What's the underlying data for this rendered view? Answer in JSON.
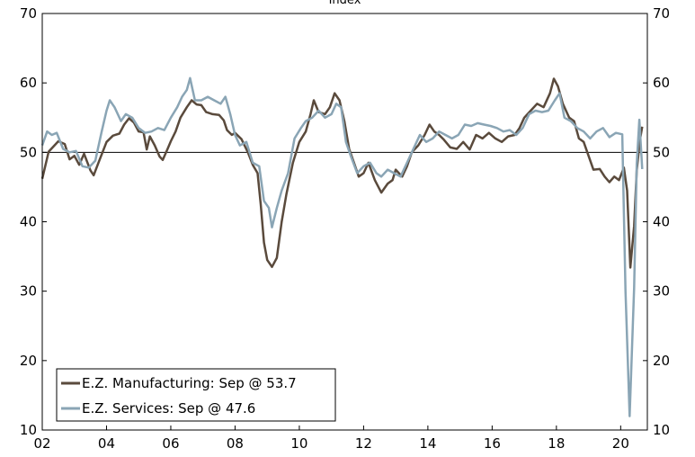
{
  "chart_data": {
    "type": "line",
    "title": "Index",
    "ylim": [
      10,
      70
    ],
    "yticks": [
      10,
      20,
      30,
      40,
      50,
      60,
      70
    ],
    "xlim": [
      2002,
      2020.83
    ],
    "xticks": [
      {
        "value": 2002,
        "label": "02"
      },
      {
        "value": 2004,
        "label": "04"
      },
      {
        "value": 2006,
        "label": "06"
      },
      {
        "value": 2008,
        "label": "08"
      },
      {
        "value": 2010,
        "label": "10"
      },
      {
        "value": 2012,
        "label": "12"
      },
      {
        "value": 2014,
        "label": "14"
      },
      {
        "value": 2016,
        "label": "16"
      },
      {
        "value": 2018,
        "label": "18"
      },
      {
        "value": 2020,
        "label": "20"
      }
    ],
    "reference_line": 50,
    "legend_position": "bottom-left",
    "series": [
      {
        "name": "E.Z. Manufacturing: Sep @ 53.7",
        "color": "#5a4a3c",
        "points": [
          [
            2002.0,
            46.2
          ],
          [
            2002.2,
            50.1
          ],
          [
            2002.5,
            51.6
          ],
          [
            2002.7,
            51.2
          ],
          [
            2002.85,
            49.0
          ],
          [
            2003.0,
            49.5
          ],
          [
            2003.15,
            48.2
          ],
          [
            2003.3,
            49.8
          ],
          [
            2003.5,
            47.4
          ],
          [
            2003.6,
            46.7
          ],
          [
            2003.75,
            48.5
          ],
          [
            2004.0,
            51.5
          ],
          [
            2004.2,
            52.4
          ],
          [
            2004.4,
            52.7
          ],
          [
            2004.55,
            54.0
          ],
          [
            2004.7,
            54.9
          ],
          [
            2004.85,
            54.3
          ],
          [
            2005.0,
            53.0
          ],
          [
            2005.15,
            52.9
          ],
          [
            2005.25,
            50.4
          ],
          [
            2005.35,
            52.3
          ],
          [
            2005.5,
            51.0
          ],
          [
            2005.65,
            49.4
          ],
          [
            2005.75,
            48.9
          ],
          [
            2005.9,
            50.5
          ],
          [
            2006.0,
            51.6
          ],
          [
            2006.15,
            53.0
          ],
          [
            2006.3,
            55.0
          ],
          [
            2006.5,
            56.5
          ],
          [
            2006.65,
            57.5
          ],
          [
            2006.8,
            56.9
          ],
          [
            2006.95,
            56.8
          ],
          [
            2007.1,
            55.8
          ],
          [
            2007.3,
            55.5
          ],
          [
            2007.5,
            55.4
          ],
          [
            2007.65,
            54.6
          ],
          [
            2007.75,
            53.2
          ],
          [
            2007.9,
            52.5
          ],
          [
            2008.0,
            52.8
          ],
          [
            2008.2,
            51.9
          ],
          [
            2008.4,
            50.0
          ],
          [
            2008.55,
            48.2
          ],
          [
            2008.7,
            47.0
          ],
          [
            2008.8,
            42.5
          ],
          [
            2008.9,
            37.0
          ],
          [
            2009.0,
            34.5
          ],
          [
            2009.15,
            33.5
          ],
          [
            2009.3,
            34.8
          ],
          [
            2009.45,
            40.0
          ],
          [
            2009.6,
            44.0
          ],
          [
            2009.8,
            48.5
          ],
          [
            2010.0,
            51.5
          ],
          [
            2010.2,
            53.0
          ],
          [
            2010.35,
            55.5
          ],
          [
            2010.45,
            57.5
          ],
          [
            2010.6,
            55.8
          ],
          [
            2010.8,
            55.5
          ],
          [
            2010.95,
            56.5
          ],
          [
            2011.1,
            58.5
          ],
          [
            2011.25,
            57.5
          ],
          [
            2011.4,
            54.5
          ],
          [
            2011.55,
            50.5
          ],
          [
            2011.7,
            48.5
          ],
          [
            2011.85,
            46.5
          ],
          [
            2012.0,
            47.0
          ],
          [
            2012.15,
            48.5
          ],
          [
            2012.35,
            46.0
          ],
          [
            2012.55,
            44.2
          ],
          [
            2012.75,
            45.5
          ],
          [
            2012.9,
            46.0
          ],
          [
            2013.0,
            47.5
          ],
          [
            2013.2,
            46.5
          ],
          [
            2013.35,
            48.0
          ],
          [
            2013.5,
            50.0
          ],
          [
            2013.7,
            51.0
          ],
          [
            2013.9,
            52.5
          ],
          [
            2014.05,
            54.0
          ],
          [
            2014.2,
            53.0
          ],
          [
            2014.35,
            52.5
          ],
          [
            2014.5,
            51.8
          ],
          [
            2014.7,
            50.7
          ],
          [
            2014.9,
            50.5
          ],
          [
            2015.1,
            51.5
          ],
          [
            2015.3,
            50.4
          ],
          [
            2015.5,
            52.5
          ],
          [
            2015.7,
            52.0
          ],
          [
            2015.9,
            52.8
          ],
          [
            2016.1,
            52.0
          ],
          [
            2016.3,
            51.5
          ],
          [
            2016.5,
            52.3
          ],
          [
            2016.7,
            52.5
          ],
          [
            2016.85,
            53.5
          ],
          [
            2017.0,
            55.0
          ],
          [
            2017.2,
            56.0
          ],
          [
            2017.4,
            57.0
          ],
          [
            2017.6,
            56.5
          ],
          [
            2017.8,
            58.5
          ],
          [
            2017.92,
            60.6
          ],
          [
            2018.05,
            59.5
          ],
          [
            2018.2,
            57.0
          ],
          [
            2018.4,
            55.0
          ],
          [
            2018.55,
            54.5
          ],
          [
            2018.7,
            52.0
          ],
          [
            2018.85,
            51.5
          ],
          [
            2019.0,
            49.5
          ],
          [
            2019.15,
            47.5
          ],
          [
            2019.35,
            47.6
          ],
          [
            2019.5,
            46.5
          ],
          [
            2019.65,
            45.7
          ],
          [
            2019.8,
            46.5
          ],
          [
            2019.95,
            46.0
          ],
          [
            2020.1,
            47.8
          ],
          [
            2020.2,
            44.5
          ],
          [
            2020.3,
            33.4
          ],
          [
            2020.42,
            39.4
          ],
          [
            2020.5,
            47.4
          ],
          [
            2020.6,
            51.8
          ],
          [
            2020.67,
            53.7
          ]
        ]
      },
      {
        "name": "E.Z. Services: Sep @ 47.6",
        "color": "#8aa5b5",
        "points": [
          [
            2002.0,
            51.0
          ],
          [
            2002.15,
            53.0
          ],
          [
            2002.3,
            52.5
          ],
          [
            2002.45,
            52.8
          ],
          [
            2002.65,
            50.5
          ],
          [
            2002.85,
            50.0
          ],
          [
            2003.05,
            50.2
          ],
          [
            2003.25,
            48.0
          ],
          [
            2003.45,
            47.8
          ],
          [
            2003.65,
            48.8
          ],
          [
            2003.85,
            53.0
          ],
          [
            2004.0,
            56.0
          ],
          [
            2004.1,
            57.5
          ],
          [
            2004.25,
            56.5
          ],
          [
            2004.45,
            54.5
          ],
          [
            2004.6,
            55.5
          ],
          [
            2004.8,
            55.0
          ],
          [
            2005.0,
            53.5
          ],
          [
            2005.2,
            52.8
          ],
          [
            2005.4,
            53.0
          ],
          [
            2005.6,
            53.5
          ],
          [
            2005.8,
            53.2
          ],
          [
            2006.0,
            55.0
          ],
          [
            2006.2,
            56.5
          ],
          [
            2006.35,
            58.0
          ],
          [
            2006.5,
            59.0
          ],
          [
            2006.6,
            60.7
          ],
          [
            2006.75,
            57.5
          ],
          [
            2006.95,
            57.5
          ],
          [
            2007.15,
            58.0
          ],
          [
            2007.35,
            57.5
          ],
          [
            2007.55,
            57.0
          ],
          [
            2007.7,
            58.0
          ],
          [
            2007.85,
            55.5
          ],
          [
            2008.0,
            52.5
          ],
          [
            2008.15,
            51.0
          ],
          [
            2008.35,
            51.5
          ],
          [
            2008.55,
            48.5
          ],
          [
            2008.75,
            48.0
          ],
          [
            2008.9,
            43.0
          ],
          [
            2009.05,
            42.0
          ],
          [
            2009.15,
            39.2
          ],
          [
            2009.3,
            42.0
          ],
          [
            2009.45,
            44.5
          ],
          [
            2009.65,
            47.0
          ],
          [
            2009.85,
            52.0
          ],
          [
            2010.05,
            53.5
          ],
          [
            2010.2,
            54.5
          ],
          [
            2010.4,
            55.0
          ],
          [
            2010.6,
            56.0
          ],
          [
            2010.8,
            55.0
          ],
          [
            2011.0,
            55.5
          ],
          [
            2011.15,
            57.0
          ],
          [
            2011.3,
            56.5
          ],
          [
            2011.45,
            51.5
          ],
          [
            2011.6,
            49.5
          ],
          [
            2011.8,
            47.0
          ],
          [
            2012.0,
            48.0
          ],
          [
            2012.2,
            48.5
          ],
          [
            2012.4,
            47.0
          ],
          [
            2012.55,
            46.5
          ],
          [
            2012.75,
            47.5
          ],
          [
            2012.95,
            47.0
          ],
          [
            2013.15,
            46.5
          ],
          [
            2013.35,
            48.5
          ],
          [
            2013.55,
            50.5
          ],
          [
            2013.75,
            52.5
          ],
          [
            2013.95,
            51.5
          ],
          [
            2014.15,
            52.0
          ],
          [
            2014.35,
            53.0
          ],
          [
            2014.55,
            52.5
          ],
          [
            2014.75,
            52.0
          ],
          [
            2014.95,
            52.5
          ],
          [
            2015.15,
            54.0
          ],
          [
            2015.35,
            53.8
          ],
          [
            2015.55,
            54.2
          ],
          [
            2015.75,
            54.0
          ],
          [
            2015.95,
            53.8
          ],
          [
            2016.15,
            53.5
          ],
          [
            2016.35,
            53.0
          ],
          [
            2016.55,
            53.2
          ],
          [
            2016.75,
            52.5
          ],
          [
            2016.95,
            53.5
          ],
          [
            2017.15,
            55.5
          ],
          [
            2017.35,
            56.0
          ],
          [
            2017.55,
            55.8
          ],
          [
            2017.75,
            56.0
          ],
          [
            2017.95,
            57.5
          ],
          [
            2018.1,
            58.5
          ],
          [
            2018.25,
            55.0
          ],
          [
            2018.45,
            54.5
          ],
          [
            2018.65,
            53.5
          ],
          [
            2018.85,
            53.0
          ],
          [
            2019.05,
            52.0
          ],
          [
            2019.25,
            53.0
          ],
          [
            2019.45,
            53.5
          ],
          [
            2019.65,
            52.2
          ],
          [
            2019.85,
            52.8
          ],
          [
            2020.05,
            52.6
          ],
          [
            2020.15,
            30.0
          ],
          [
            2020.28,
            12.0
          ],
          [
            2020.42,
            30.5
          ],
          [
            2020.5,
            48.3
          ],
          [
            2020.58,
            54.7
          ],
          [
            2020.67,
            47.6
          ]
        ]
      }
    ]
  }
}
